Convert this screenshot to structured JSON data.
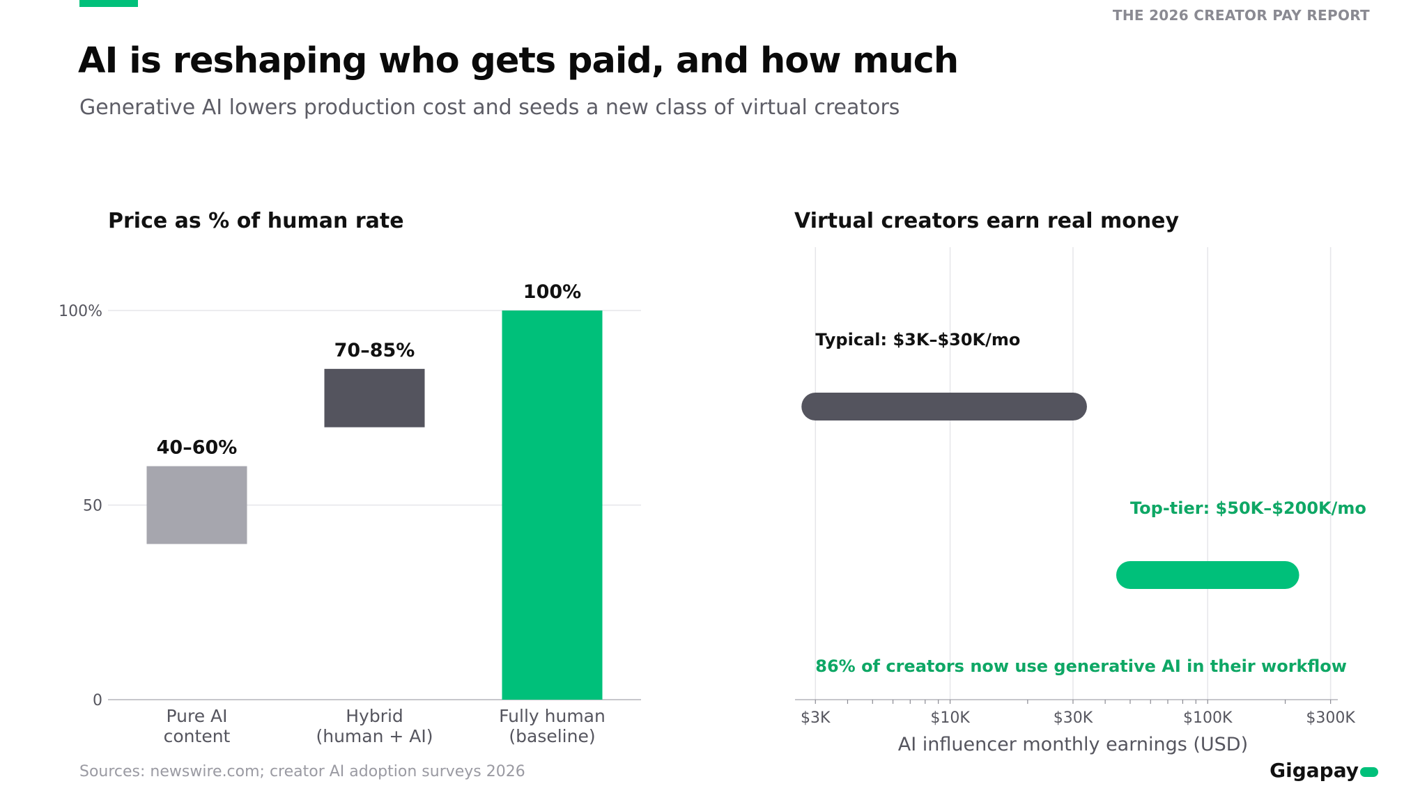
{
  "report_tag": "THE 2026 CREATOR PAY REPORT",
  "headline": "AI is reshaping who gets paid, and how much",
  "subhead": "Generative AI lowers production cost and seeds a new class of virtual creators",
  "colors": {
    "accent": "#00c07a",
    "dark": "#54545e",
    "light": "#a6a6ae",
    "accent_text": "#0ea765"
  },
  "sources": "Sources: newswire.com; creator AI adoption surveys 2026",
  "brand": "Gigapay",
  "chart_data": [
    {
      "type": "bar",
      "title": "Price as % of human rate",
      "ylim": [
        0,
        100
      ],
      "yticks": [
        "0",
        "50",
        "100%"
      ],
      "ytick_values": [
        0,
        50,
        100
      ],
      "grid": true,
      "categories": [
        {
          "lines": [
            "Pure AI",
            "content"
          ],
          "low": 40,
          "high": 60,
          "label": "40–60%",
          "color": "#a6a6ae"
        },
        {
          "lines": [
            "Hybrid",
            "(human + AI)"
          ],
          "low": 70,
          "high": 85,
          "label": "70–85%",
          "color": "#54545e"
        },
        {
          "lines": [
            "Fully human",
            "(baseline)"
          ],
          "low": 0,
          "high": 100,
          "label": "100%",
          "color": "#00c07a"
        }
      ]
    },
    {
      "type": "range",
      "title": "Virtual creators earn real money",
      "xlabel": "AI influencer monthly earnings (USD)",
      "xscale": "log",
      "xlim": [
        2500,
        320000
      ],
      "xticks": [
        {
          "value": 3000,
          "label": "$3K"
        },
        {
          "value": 10000,
          "label": "$10K"
        },
        {
          "value": 30000,
          "label": "$30K"
        },
        {
          "value": 100000,
          "label": "$100K"
        },
        {
          "value": 300000,
          "label": "$300K"
        }
      ],
      "grid": true,
      "ranges": [
        {
          "label": "Typical: $3K–$30K/mo",
          "low": 3000,
          "high": 30000,
          "color": "#54545e",
          "text_color": "#111111"
        },
        {
          "label": "Top-tier: $50K–$200K/mo",
          "low": 50000,
          "high": 200000,
          "color": "#00c07a",
          "text_color": "#0ea765"
        }
      ],
      "annotation": "86% of creators now use generative AI in their workflow"
    }
  ]
}
